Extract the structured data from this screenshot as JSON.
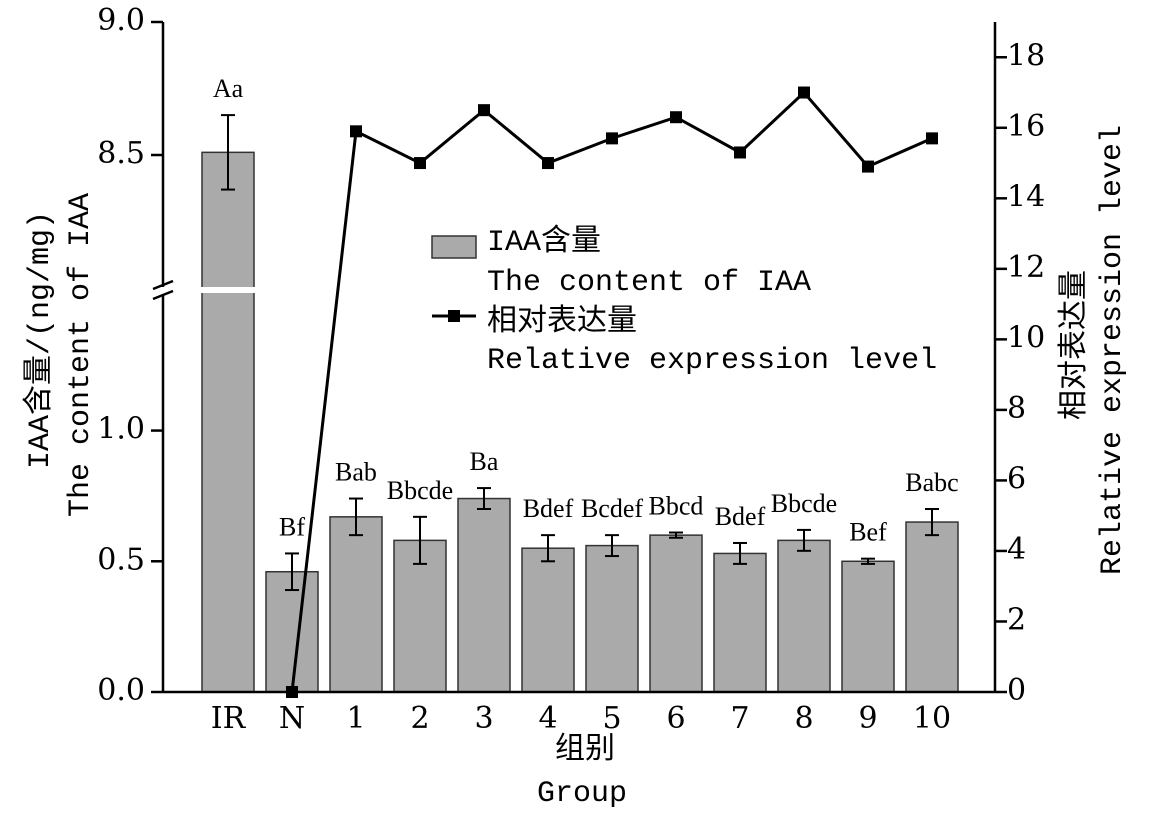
{
  "chart_data": {
    "type": "bar_line",
    "categories": [
      "IR",
      "N",
      "1",
      "2",
      "3",
      "4",
      "5",
      "6",
      "7",
      "8",
      "9",
      "10"
    ],
    "xlabel": "组别",
    "xlabel_en": "Group",
    "ylabel": "IAA含量/(ng/mg)",
    "ylabel_en": "The content of IAA",
    "y2label": "相对表达量",
    "y2label_en": "Relative expression level",
    "ylim": [
      0,
      9.0
    ],
    "ybreak": [
      1.53,
      8.0
    ],
    "yticks": [
      {
        "value": 0,
        "label": "0.0"
      },
      {
        "value": 0.5,
        "label": "0.5"
      },
      {
        "value": 1.0,
        "label": "1.0"
      },
      {
        "value": 8.5,
        "label": "8.5"
      },
      {
        "value": 9.0,
        "label": "9.0"
      }
    ],
    "y2lim": [
      0,
      19
    ],
    "y2ticks": [
      0,
      2,
      4,
      6,
      8,
      10,
      12,
      14,
      16,
      18
    ],
    "series": [
      {
        "name": "IAA含量",
        "name_en": "The content of IAA",
        "color": "#aaaaaa",
        "values": [
          8.51,
          0.46,
          0.67,
          0.58,
          0.74,
          0.55,
          0.56,
          0.6,
          0.53,
          0.58,
          0.5,
          0.65
        ],
        "errors": [
          0.14,
          0.07,
          0.07,
          0.09,
          0.04,
          0.05,
          0.04,
          0.01,
          0.04,
          0.04,
          0.01,
          0.05
        ],
        "letters": [
          "Aa",
          "Bf",
          "Bab",
          "Bbcde",
          "Ba",
          "Bdef",
          "Bcdef",
          "Bbcd",
          "Bdef",
          "Bbcde",
          "Bef",
          "Babc"
        ]
      },
      {
        "name": "相对表达量",
        "name_en": "Relative expression level",
        "color": "#000000",
        "axis": "y2",
        "values": [
          null,
          0,
          15.9,
          15.0,
          16.5,
          15.0,
          15.7,
          16.3,
          15.3,
          17.0,
          14.9,
          15.7
        ]
      }
    ]
  }
}
